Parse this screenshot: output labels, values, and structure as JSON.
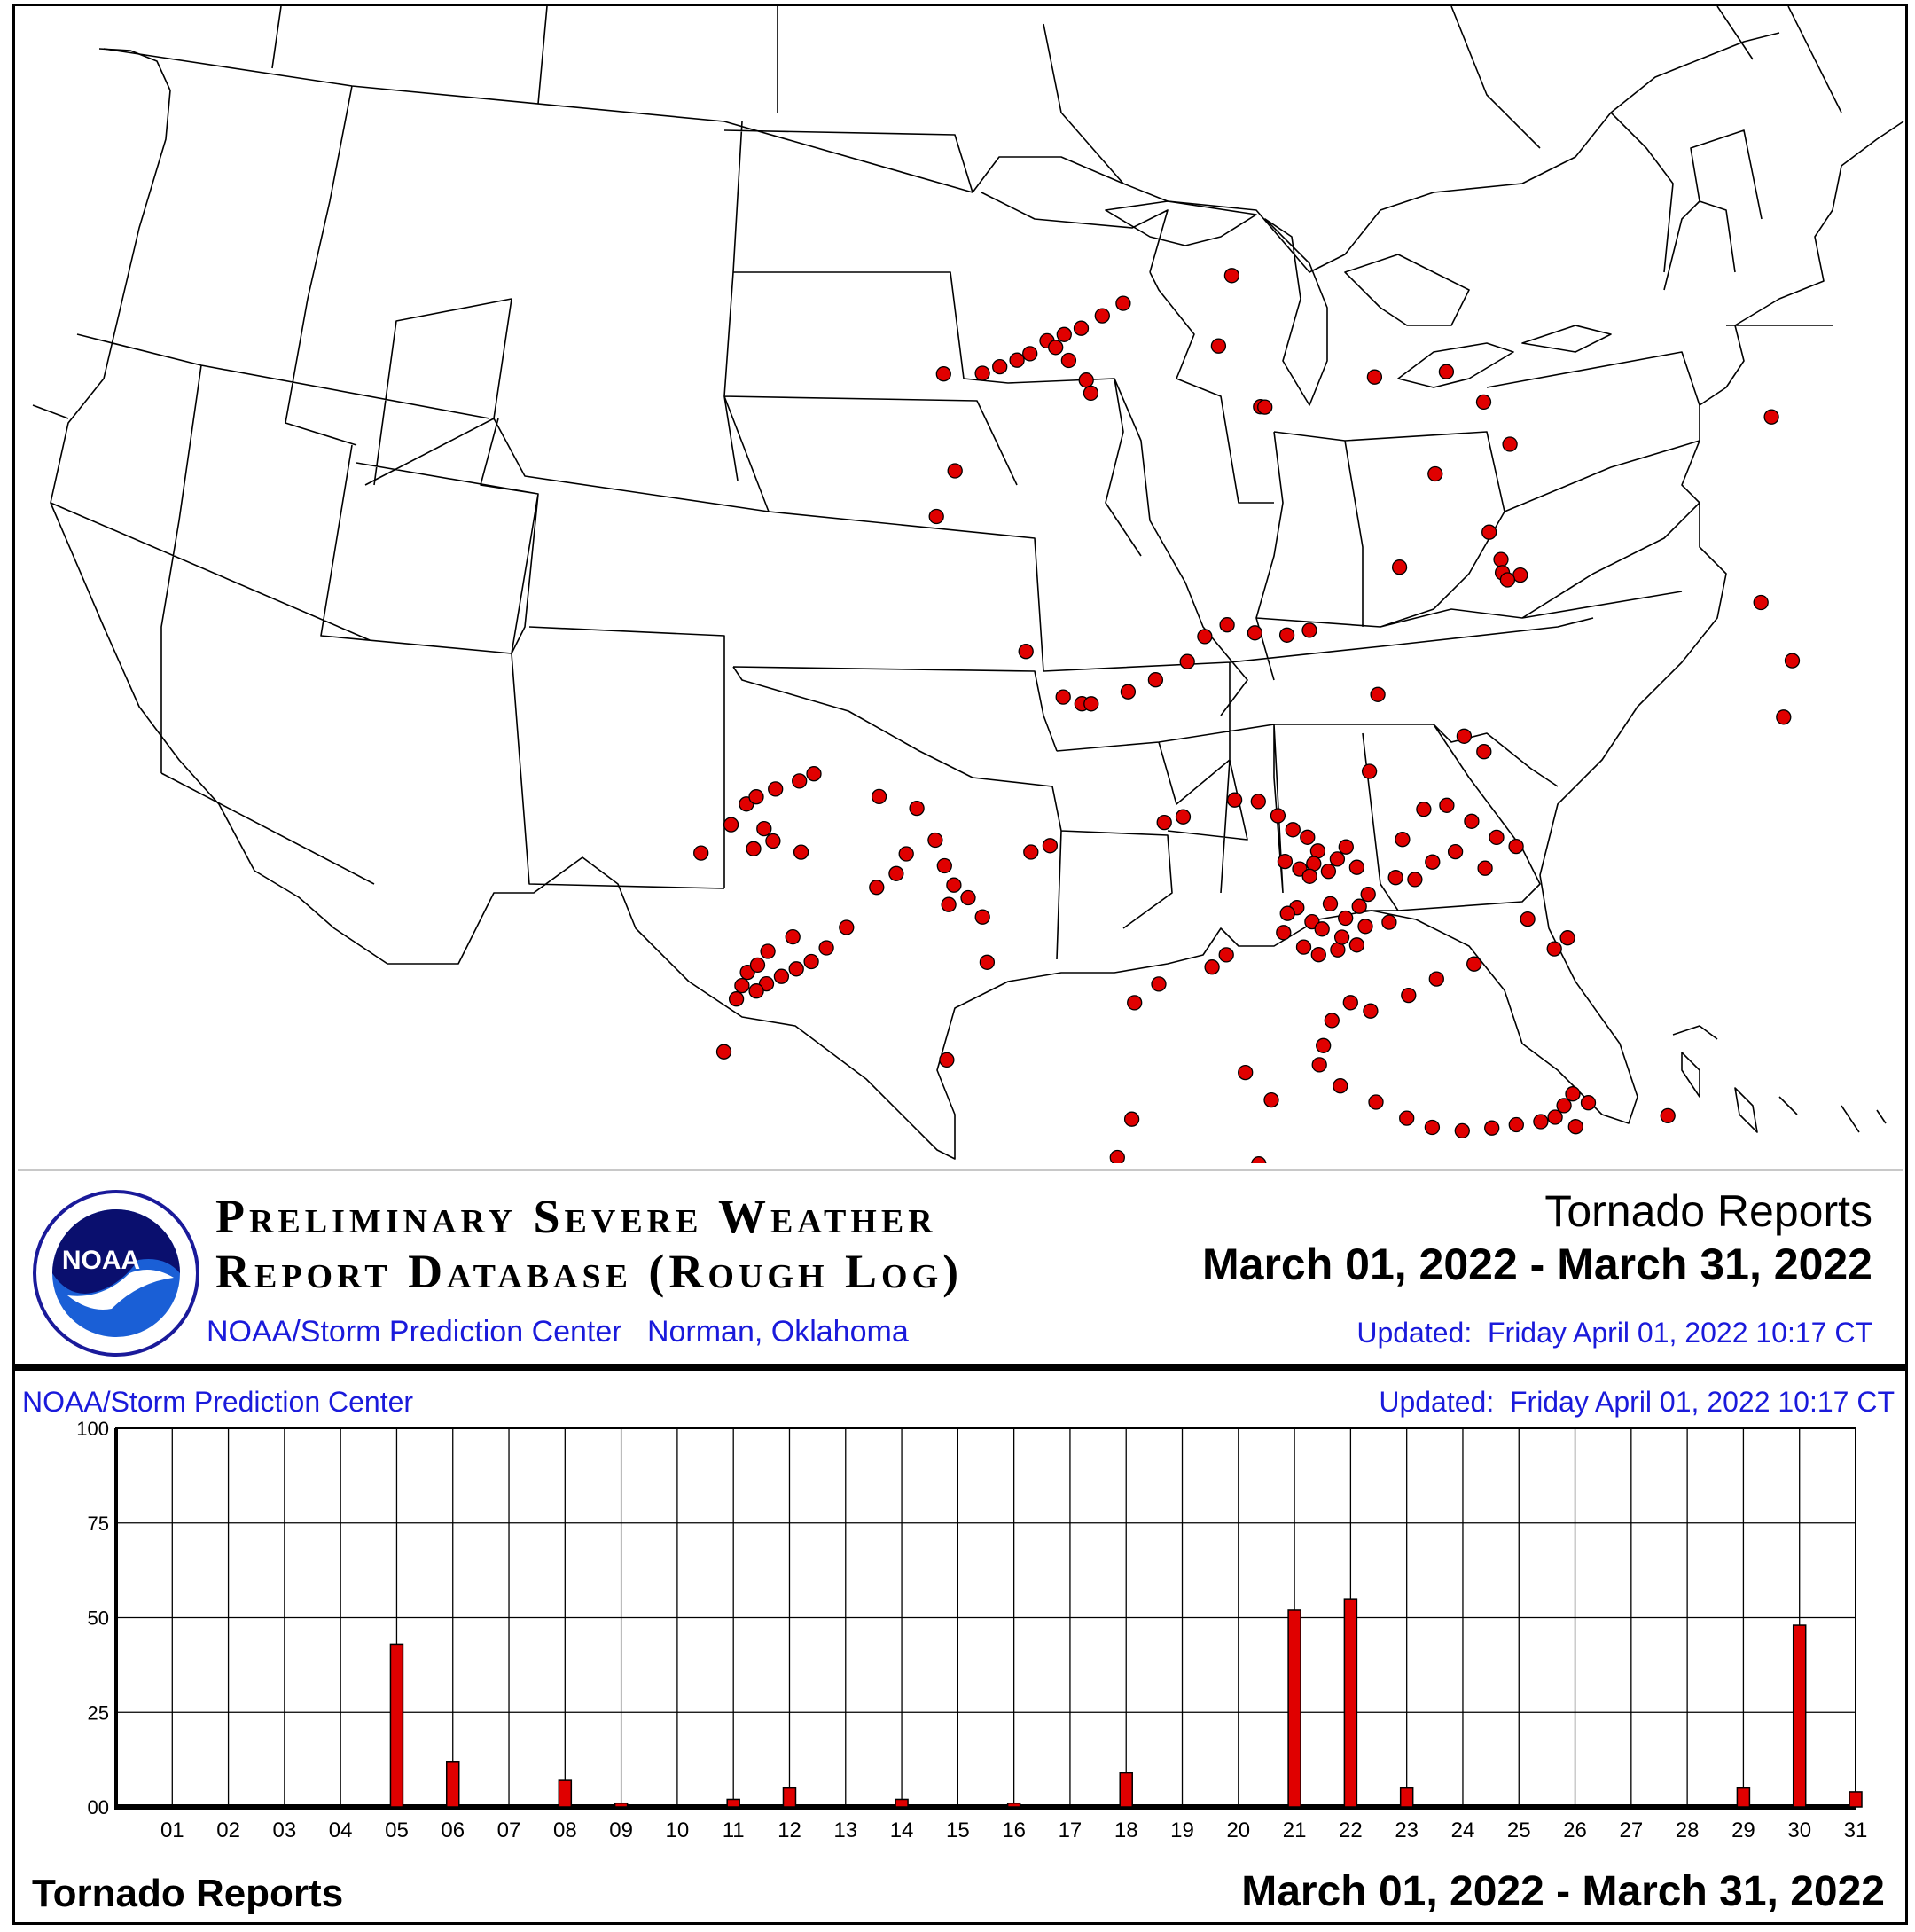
{
  "map": {
    "marker_color": "#e00000",
    "logo_text": "NOAA",
    "report_points": [
      [
        -96.9,
        42.4
      ],
      [
        -96.5,
        42.5
      ],
      [
        -96.1,
        42.6
      ],
      [
        -95.8,
        42.7
      ],
      [
        -95.4,
        42.9
      ],
      [
        -95.0,
        43.0
      ],
      [
        -94.6,
        43.1
      ],
      [
        -94.1,
        43.3
      ],
      [
        -93.6,
        43.5
      ],
      [
        -95.2,
        42.8
      ],
      [
        -94.9,
        42.6
      ],
      [
        -94.5,
        42.3
      ],
      [
        -94.4,
        42.1
      ],
      [
        -97.8,
        42.4
      ],
      [
        -91.0,
        44.0
      ],
      [
        -91.4,
        42.9
      ],
      [
        -90.5,
        42.0
      ],
      [
        -90.4,
        42.0
      ],
      [
        -87.8,
        42.6
      ],
      [
        -86.1,
        42.8
      ],
      [
        -85.3,
        42.4
      ],
      [
        -84.8,
        41.8
      ],
      [
        -86.6,
        41.2
      ],
      [
        -85.5,
        40.4
      ],
      [
        -85.3,
        40.0
      ],
      [
        -85.3,
        39.8
      ],
      [
        -84.9,
        39.8
      ],
      [
        -85.2,
        39.7
      ],
      [
        -87.6,
        39.7
      ],
      [
        -78.5,
        42.9
      ],
      [
        -79.5,
        40.0
      ],
      [
        -79.0,
        39.2
      ],
      [
        -79.4,
        38.3
      ],
      [
        -97.5,
        40.9
      ],
      [
        -97.9,
        40.2
      ],
      [
        -95.9,
        38.1
      ],
      [
        -95.1,
        37.4
      ],
      [
        -94.7,
        37.3
      ],
      [
        -94.5,
        37.3
      ],
      [
        -93.7,
        37.5
      ],
      [
        -93.1,
        37.7
      ],
      [
        -92.4,
        38.0
      ],
      [
        -92.0,
        38.4
      ],
      [
        -91.5,
        38.6
      ],
      [
        -90.9,
        38.5
      ],
      [
        -90.2,
        38.5
      ],
      [
        -89.7,
        38.6
      ],
      [
        -88.3,
        37.7
      ],
      [
        -86.1,
        37.0
      ],
      [
        -102.7,
        35.2
      ],
      [
        -102.1,
        35.6
      ],
      [
        -101.8,
        35.9
      ],
      [
        -101.6,
        36.0
      ],
      [
        -101.2,
        36.1
      ],
      [
        -100.7,
        36.2
      ],
      [
        -100.4,
        36.3
      ],
      [
        -101.4,
        35.5
      ],
      [
        -101.6,
        35.2
      ],
      [
        -101.2,
        35.3
      ],
      [
        -100.6,
        35.1
      ],
      [
        -99.0,
        35.9
      ],
      [
        -98.2,
        35.7
      ],
      [
        -97.8,
        35.2
      ],
      [
        -97.6,
        34.8
      ],
      [
        -97.4,
        34.5
      ],
      [
        -97.1,
        34.3
      ],
      [
        -96.8,
        34.0
      ],
      [
        -97.5,
        34.2
      ],
      [
        -99.6,
        33.9
      ],
      [
        -100.0,
        33.6
      ],
      [
        -100.3,
        33.4
      ],
      [
        -100.6,
        33.3
      ],
      [
        -100.9,
        33.2
      ],
      [
        -101.2,
        33.1
      ],
      [
        -101.4,
        33.0
      ],
      [
        -101.8,
        32.9
      ],
      [
        -101.7,
        33.1
      ],
      [
        -101.6,
        33.3
      ],
      [
        -101.4,
        33.4
      ],
      [
        -101.2,
        33.6
      ],
      [
        -100.7,
        33.8
      ],
      [
        -99.0,
        34.5
      ],
      [
        -98.6,
        34.7
      ],
      [
        -98.4,
        35.0
      ],
      [
        -102.0,
        32.1
      ],
      [
        -97.5,
        31.8
      ],
      [
        -96.7,
        33.3
      ],
      [
        -95.8,
        35.0
      ],
      [
        -95.4,
        35.1
      ],
      [
        -93.0,
        35.5
      ],
      [
        -92.6,
        35.6
      ],
      [
        -91.5,
        35.9
      ],
      [
        -91.0,
        35.9
      ],
      [
        -90.6,
        35.7
      ],
      [
        -90.3,
        35.5
      ],
      [
        -90.0,
        35.4
      ],
      [
        -89.8,
        35.2
      ],
      [
        -89.9,
        35.0
      ],
      [
        -90.2,
        34.9
      ],
      [
        -90.5,
        35.0
      ],
      [
        -90.0,
        34.8
      ],
      [
        -89.6,
        34.9
      ],
      [
        -89.4,
        35.1
      ],
      [
        -89.2,
        35.3
      ],
      [
        -89.0,
        35.0
      ],
      [
        -88.8,
        34.6
      ],
      [
        -88.4,
        34.2
      ],
      [
        -88.2,
        34.9
      ],
      [
        -88.0,
        35.5
      ],
      [
        -87.5,
        36.0
      ],
      [
        -87.0,
        36.1
      ],
      [
        -86.5,
        35.9
      ],
      [
        -86.0,
        35.7
      ],
      [
        -85.6,
        35.6
      ],
      [
        -86.3,
        35.2
      ],
      [
        -86.9,
        35.4
      ],
      [
        -87.4,
        35.2
      ],
      [
        -87.8,
        34.9
      ],
      [
        -88.6,
        36.5
      ],
      [
        -86.5,
        37.2
      ],
      [
        -85.5,
        34.5
      ],
      [
        -85.0,
        34.1
      ],
      [
        -84.7,
        34.3
      ],
      [
        -86.7,
        33.7
      ],
      [
        -87.5,
        33.4
      ],
      [
        -88.1,
        33.1
      ],
      [
        -88.9,
        32.8
      ],
      [
        -89.3,
        32.9
      ],
      [
        -89.7,
        32.6
      ],
      [
        -89.9,
        32.2
      ],
      [
        -90.0,
        31.9
      ],
      [
        -89.6,
        31.6
      ],
      [
        -88.9,
        31.4
      ],
      [
        -88.3,
        31.2
      ],
      [
        -87.8,
        31.1
      ],
      [
        -87.2,
        31.1
      ],
      [
        -86.6,
        31.2
      ],
      [
        -86.1,
        31.3
      ],
      [
        -85.6,
        31.4
      ],
      [
        -85.3,
        31.5
      ],
      [
        -85.1,
        31.7
      ],
      [
        -84.9,
        31.9
      ],
      [
        -84.6,
        31.8
      ],
      [
        -84.9,
        31.4
      ],
      [
        -83.0,
        31.8
      ],
      [
        -82.8,
        30.9
      ],
      [
        -82.3,
        30.7
      ],
      [
        -81.3,
        30.1
      ],
      [
        -80.8,
        30.3
      ],
      [
        -82.8,
        29.6
      ],
      [
        -82.5,
        29.0
      ],
      [
        -81.5,
        28.5
      ],
      [
        -80.5,
        28.2
      ],
      [
        -82.2,
        27.9
      ],
      [
        -81.9,
        27.2
      ],
      [
        -91.5,
        31.7
      ],
      [
        -91.0,
        31.3
      ],
      [
        -91.3,
        30.3
      ],
      [
        -91.0,
        30.2
      ],
      [
        -90.8,
        30.0
      ],
      [
        -93.8,
        30.9
      ],
      [
        -94.1,
        30.3
      ],
      [
        -94.2,
        29.6
      ],
      [
        -91.8,
        33.5
      ],
      [
        -92.1,
        33.3
      ],
      [
        -93.2,
        33.0
      ],
      [
        -93.7,
        32.7
      ],
      [
        -96.5,
        29.2
      ],
      [
        -90.3,
        34.3
      ],
      [
        -90.0,
        34.1
      ],
      [
        -89.6,
        34.4
      ],
      [
        -89.3,
        34.2
      ],
      [
        -90.5,
        34.2
      ],
      [
        -90.6,
        33.9
      ],
      [
        -90.2,
        33.7
      ],
      [
        -89.9,
        33.6
      ],
      [
        -89.5,
        33.7
      ],
      [
        -89.8,
        34.0
      ],
      [
        -89.4,
        33.9
      ],
      [
        -89.1,
        33.8
      ],
      [
        -88.9,
        34.1
      ],
      [
        -89.0,
        34.4
      ]
    ]
  },
  "banner": {
    "db_title_line1": "Preliminary Severe Weather",
    "db_title_line2": "Report Database (Rough Log)",
    "agency_line": "NOAA/Storm Prediction Center   Norman, Oklahoma",
    "report_type": "Tornado Reports",
    "date_range": "March 01, 2022 - March 31, 2022",
    "updated": "Updated:  Friday April 01, 2022 10:17 CT"
  },
  "chart_header": {
    "source": "NOAA/Storm Prediction Center",
    "updated": "Updated:  Friday April 01, 2022 10:17 CT"
  },
  "chart_data": {
    "type": "bar",
    "title": "Tornado Reports",
    "subtitle": "March 01, 2022 - March 31, 2022",
    "categories": [
      "01",
      "02",
      "03",
      "04",
      "05",
      "06",
      "07",
      "08",
      "09",
      "10",
      "11",
      "12",
      "13",
      "14",
      "15",
      "16",
      "17",
      "18",
      "19",
      "20",
      "21",
      "22",
      "23",
      "24",
      "25",
      "26",
      "27",
      "28",
      "29",
      "30",
      "31"
    ],
    "values": [
      0,
      0,
      0,
      0,
      43,
      12,
      0,
      7,
      1,
      0,
      2,
      5,
      0,
      2,
      0,
      1,
      0,
      9,
      0,
      0,
      52,
      55,
      5,
      0,
      0,
      0,
      0,
      0,
      5,
      48,
      4
    ],
    "ylim": [
      0,
      100
    ],
    "yticks": [
      "00",
      "25",
      "50",
      "75",
      "100"
    ],
    "grid": true,
    "bar_color": "#e00000"
  },
  "footer": {
    "left": "Tornado Reports",
    "right": "March 01, 2022 - March 31, 2022"
  }
}
